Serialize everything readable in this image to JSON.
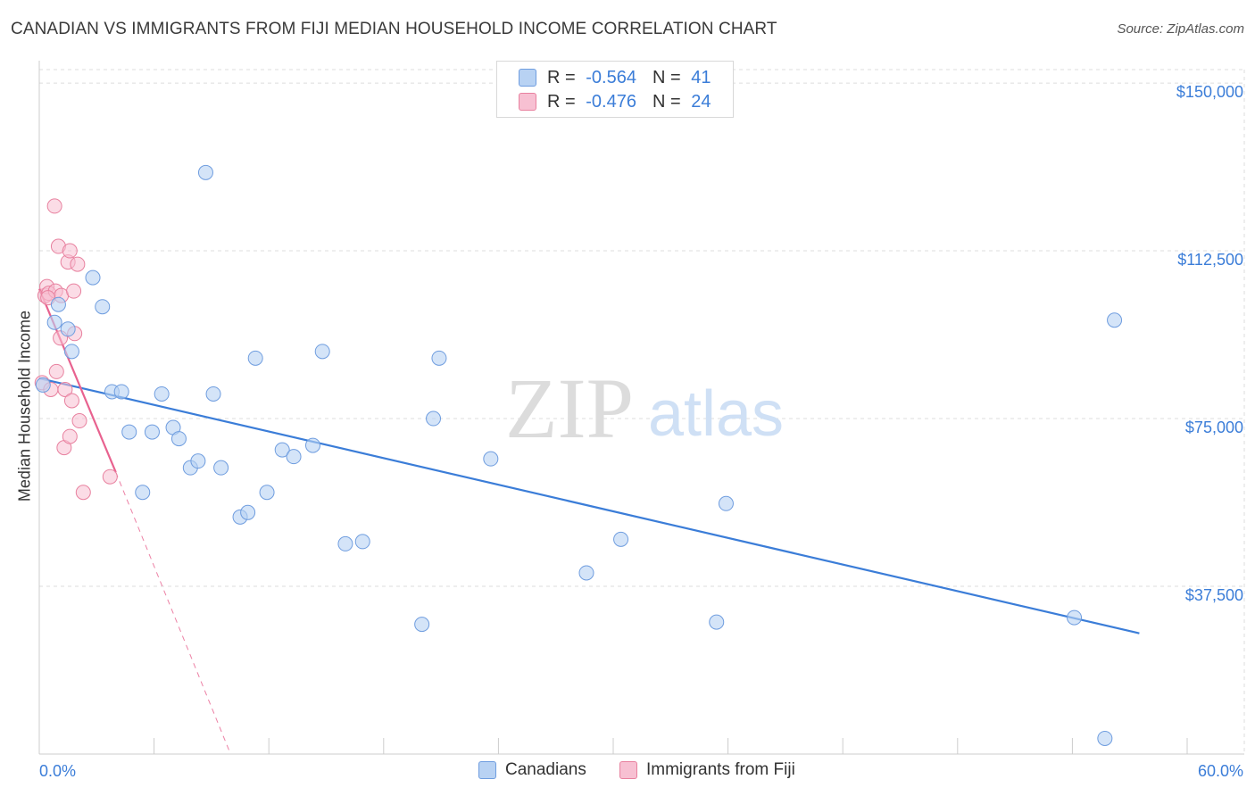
{
  "title": "CANADIAN VS IMMIGRANTS FROM FIJI MEDIAN HOUSEHOLD INCOME CORRELATION CHART",
  "source": "Source: ZipAtlas.com",
  "watermark": {
    "zip": "ZIP",
    "atlas": "atlas"
  },
  "colors": {
    "blue": "#3b7dd8",
    "blue_fill": "#b8d2f3",
    "pink": "#e8628f",
    "pink_fill": "#f7c0d2",
    "grid": "#dcdcdc"
  },
  "legend_top": {
    "rows": [
      {
        "r_label": "R =",
        "r_value": "-0.564",
        "n_label": "N =",
        "n_value": "41"
      },
      {
        "r_label": "R =",
        "r_value": "-0.476",
        "n_label": "N =",
        "n_value": "24"
      }
    ]
  },
  "chart_data": {
    "type": "scatter",
    "xlabel": "",
    "ylabel": "Median Household Income",
    "xlim": [
      0,
      60
    ],
    "ylim": [
      0,
      155000
    ],
    "x_tick_labels": {
      "left": "0.0%",
      "right": "60.0%"
    },
    "y_ticks": [
      {
        "value": 37500,
        "label": "$37,500"
      },
      {
        "value": 75000,
        "label": "$75,000"
      },
      {
        "value": 112500,
        "label": "$112,500"
      },
      {
        "value": 150000,
        "label": "$150,000"
      }
    ],
    "series": [
      {
        "name": "Canadians",
        "r": -0.564,
        "n": 41,
        "trend": {
          "x0": 0,
          "y0": 84000,
          "x1": 57.5,
          "y1": 27000
        },
        "points": [
          [
            0.2,
            82500
          ],
          [
            0.8,
            96500
          ],
          [
            1.0,
            100500
          ],
          [
            1.5,
            95000
          ],
          [
            1.7,
            90000
          ],
          [
            2.8,
            106500
          ],
          [
            3.3,
            100000
          ],
          [
            3.8,
            81000
          ],
          [
            4.3,
            81000
          ],
          [
            4.7,
            72000
          ],
          [
            5.4,
            58500
          ],
          [
            5.9,
            72000
          ],
          [
            6.4,
            80500
          ],
          [
            7.0,
            73000
          ],
          [
            7.3,
            70500
          ],
          [
            7.9,
            64000
          ],
          [
            8.3,
            65500
          ],
          [
            8.7,
            130000
          ],
          [
            9.1,
            80500
          ],
          [
            9.5,
            64000
          ],
          [
            10.5,
            53000
          ],
          [
            10.9,
            54000
          ],
          [
            11.3,
            88500
          ],
          [
            11.9,
            58500
          ],
          [
            12.7,
            68000
          ],
          [
            13.3,
            66500
          ],
          [
            14.3,
            69000
          ],
          [
            14.8,
            90000
          ],
          [
            16.0,
            47000
          ],
          [
            16.9,
            47500
          ],
          [
            20.0,
            29000
          ],
          [
            20.6,
            75000
          ],
          [
            20.9,
            88500
          ],
          [
            23.6,
            66000
          ],
          [
            28.6,
            40500
          ],
          [
            30.4,
            48000
          ],
          [
            35.4,
            29500
          ],
          [
            35.9,
            56000
          ],
          [
            54.1,
            30500
          ],
          [
            56.2,
            97000
          ],
          [
            55.7,
            3500
          ]
        ]
      },
      {
        "name": "Immigrants from Fiji",
        "r": -0.476,
        "n": 24,
        "trend": {
          "x0": 0,
          "y0": 104000,
          "x1": 4.0,
          "y1": 63000
        },
        "trend_ext": {
          "x0": 4.0,
          "y0": 63000,
          "x1": 10.0,
          "y1": 0
        },
        "points": [
          [
            0.15,
            83000
          ],
          [
            0.3,
            102500
          ],
          [
            0.4,
            104500
          ],
          [
            0.5,
            103000
          ],
          [
            0.6,
            81500
          ],
          [
            0.8,
            122500
          ],
          [
            0.9,
            85500
          ],
          [
            0.85,
            103500
          ],
          [
            1.0,
            113500
          ],
          [
            1.1,
            93000
          ],
          [
            1.15,
            102500
          ],
          [
            1.3,
            68500
          ],
          [
            1.35,
            81500
          ],
          [
            1.5,
            110000
          ],
          [
            1.6,
            71000
          ],
          [
            1.6,
            112500
          ],
          [
            1.7,
            79000
          ],
          [
            1.8,
            103500
          ],
          [
            1.85,
            94000
          ],
          [
            2.0,
            109500
          ],
          [
            2.1,
            74500
          ],
          [
            2.3,
            58500
          ],
          [
            3.7,
            62000
          ],
          [
            0.45,
            102000
          ]
        ]
      }
    ]
  },
  "bottom_legend": [
    {
      "label": "Canadians"
    },
    {
      "label": "Immigrants from Fiji"
    }
  ]
}
